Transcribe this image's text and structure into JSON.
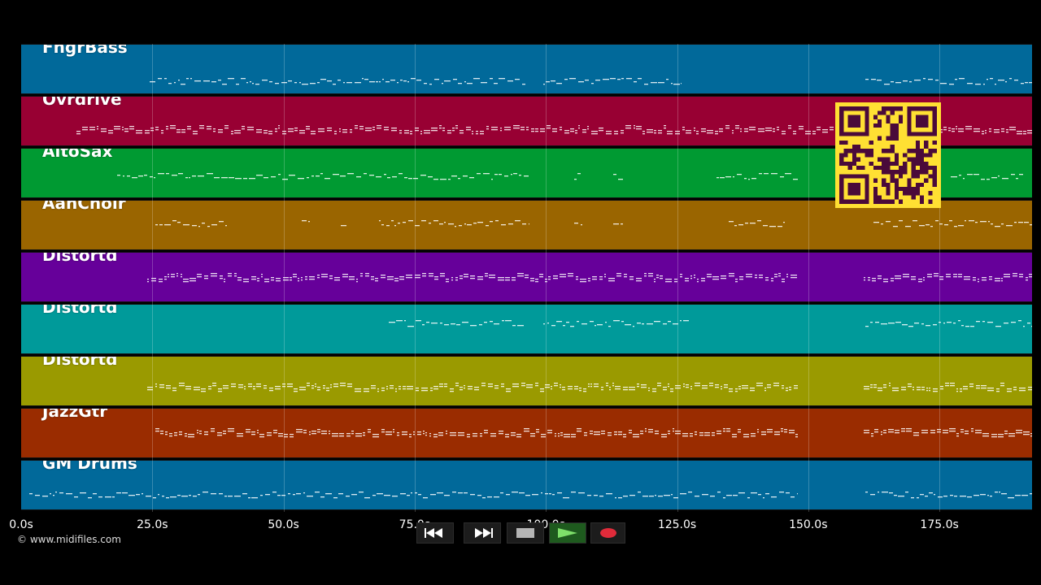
{
  "tracks": [
    {
      "name": "FngrBass",
      "color": "#01699a"
    },
    {
      "name": "Ovrdrive",
      "color": "#980033"
    },
    {
      "name": "AltoSax",
      "color": "#009a32"
    },
    {
      "name": "AahChoir",
      "color": "#9a6500"
    },
    {
      "name": "Distortd",
      "color": "#66009a"
    },
    {
      "name": "Distortd",
      "color": "#009a9a"
    },
    {
      "name": "Distortd",
      "color": "#9a9a00"
    },
    {
      "name": "JazzGtr",
      "color": "#9a2c00"
    },
    {
      "name": "GM Drums",
      "color": "#01699a"
    }
  ],
  "timeline": {
    "ticks": [
      "0.0s",
      "25.0s",
      "50.0s",
      "75.0s",
      "100.0s",
      "125.0s",
      "150.0s",
      "175.0s"
    ]
  },
  "copyright": "© www.midifiles.com",
  "qr_color": "#ffe033",
  "transport": {
    "rewind": "rewind-icon",
    "fast_forward": "fast-forward-icon",
    "stop": "stop-icon",
    "play": "play-icon",
    "record": "record-icon"
  }
}
